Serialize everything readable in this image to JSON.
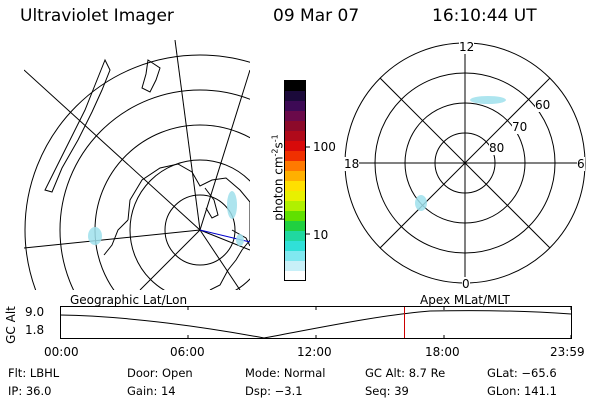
{
  "header": {
    "title": "Ultraviolet Imager",
    "date": "09 Mar 07",
    "time": "16:10:44 UT"
  },
  "colorbar": {
    "label": "photon cm",
    "label_exp1": "-2",
    "label_mid": "s",
    "label_exp2": "-1",
    "ticks": [
      "100",
      "10"
    ],
    "colors": [
      "#000000",
      "#1b0a3a",
      "#3d0a55",
      "#6a0a4a",
      "#8c0a2a",
      "#b00a1a",
      "#d80a0a",
      "#f03000",
      "#ff7a00",
      "#ffb000",
      "#ffe000",
      "#e8f000",
      "#b0f000",
      "#60e000",
      "#20d040",
      "#20d8a0",
      "#30e0d8",
      "#80e8f0",
      "#c8f0f8",
      "#ffffff"
    ]
  },
  "geo_map": {
    "panel_label": "Geographic Lat/Lon"
  },
  "polar_map": {
    "panel_label": "Apex MLat/MLT",
    "mlt_labels": {
      "top": "12",
      "bottom": "0",
      "left": "18",
      "right": "6"
    },
    "lat_labels": [
      "60",
      "70",
      "80"
    ]
  },
  "alt_plot": {
    "ylabel": "GC Alt",
    "yticks": [
      "9.0",
      "1.8"
    ],
    "xticks": [
      "00:00",
      "06:00",
      "12:00",
      "18:00",
      "23:59"
    ],
    "current_time_hours": 16.18
  },
  "info": {
    "filter": "Flt: LBHL",
    "door": "Door: Open",
    "mode": "Mode: Normal",
    "gc_alt": "GC Alt: 8.7 Re",
    "glat": "GLat: −65.6",
    "ip": "IP: 36.0",
    "gain": "Gain: 14",
    "dsp": "Dsp:    −3.1",
    "seq": "Seq: 39",
    "glon": "GLon: 141.1"
  },
  "colors": {
    "marker": "#cc0000",
    "aurora": "#9fe0ec",
    "sat_line": "#0000cc"
  }
}
